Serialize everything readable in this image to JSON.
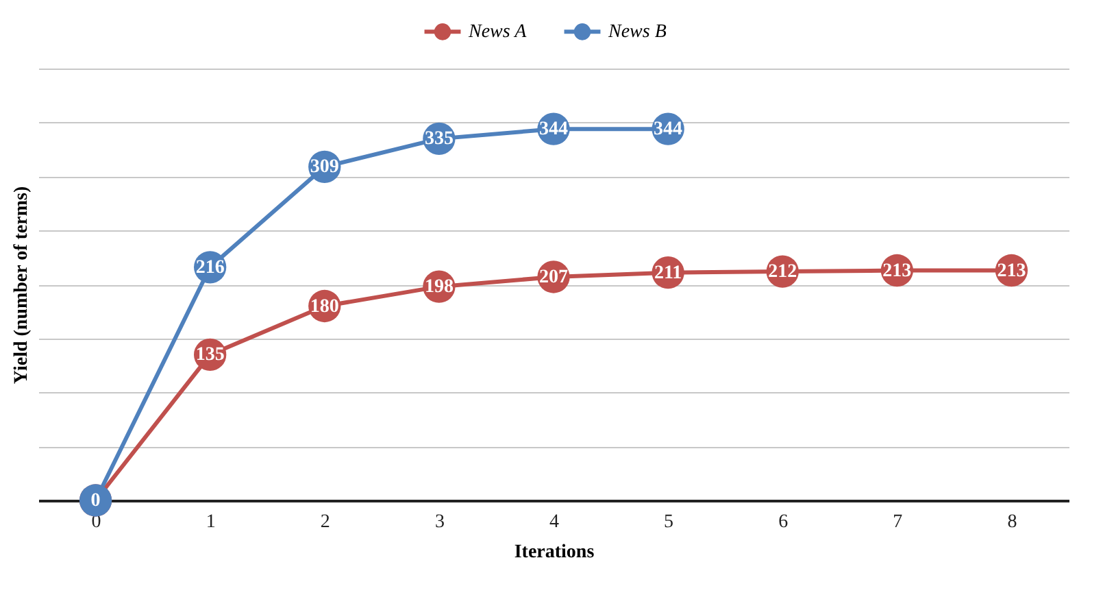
{
  "chart_data": {
    "type": "line",
    "xlabel": "Iterations",
    "ylabel": "Yield (number of terms)",
    "categories": [
      "0",
      "1",
      "2",
      "3",
      "4",
      "5",
      "6",
      "7",
      "8"
    ],
    "series": [
      {
        "name": "News A",
        "color": "#c0504d",
        "values": [
          0,
          135,
          180,
          198,
          207,
          211,
          212,
          213,
          213
        ],
        "value_labels": [
          null,
          "135",
          "180",
          "198",
          "207",
          "211",
          "212",
          "213",
          "213"
        ]
      },
      {
        "name": "News B",
        "color": "#4f81bd",
        "values": [
          0,
          216,
          309,
          335,
          344,
          344,
          null,
          null,
          null
        ],
        "value_labels": [
          "0",
          "216",
          "309",
          "335",
          "344",
          "344",
          null,
          null,
          null
        ]
      }
    ],
    "ylim": [
      0,
      400
    ],
    "yticks": [
      {
        "value": 0,
        "label": null
      },
      {
        "value": 50,
        "label": null
      },
      {
        "value": 100,
        "label": null
      },
      {
        "value": 150,
        "label": null
      },
      {
        "value": 200,
        "label": null
      },
      {
        "value": 250,
        "label": null
      },
      {
        "value": 300,
        "label": null
      },
      {
        "value": 350,
        "label": null
      },
      {
        "value": 400,
        "label": null
      }
    ],
    "tick_labels": "x",
    "grid": "y",
    "legend": "top",
    "marker": "circle",
    "line_style": "solid"
  }
}
